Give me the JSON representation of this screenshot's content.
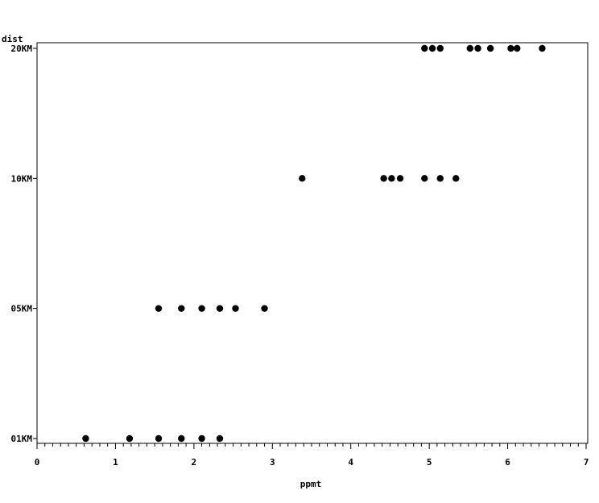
{
  "chart_data": {
    "type": "scatter",
    "title": "",
    "xlabel": "ppmt",
    "ylabel": "dist",
    "xlim": [
      0,
      7
    ],
    "x_ticks": [
      "0",
      "1",
      "2",
      "3",
      "4",
      "5",
      "6",
      "7"
    ],
    "y_categories": [
      "01KM",
      "05KM",
      "10KM",
      "20KM"
    ],
    "grid": false,
    "marker_color": "#000000",
    "series": [
      {
        "points": [
          {
            "x": 0.62,
            "y": "01KM"
          },
          {
            "x": 1.18,
            "y": "01KM"
          },
          {
            "x": 1.55,
            "y": "01KM"
          },
          {
            "x": 1.84,
            "y": "01KM"
          },
          {
            "x": 2.1,
            "y": "01KM"
          },
          {
            "x": 2.33,
            "y": "01KM"
          },
          {
            "x": 1.55,
            "y": "05KM"
          },
          {
            "x": 1.84,
            "y": "05KM"
          },
          {
            "x": 2.1,
            "y": "05KM"
          },
          {
            "x": 2.33,
            "y": "05KM"
          },
          {
            "x": 2.53,
            "y": "05KM"
          },
          {
            "x": 2.9,
            "y": "05KM"
          },
          {
            "x": 3.38,
            "y": "10KM"
          },
          {
            "x": 4.42,
            "y": "10KM"
          },
          {
            "x": 4.52,
            "y": "10KM"
          },
          {
            "x": 4.63,
            "y": "10KM"
          },
          {
            "x": 4.94,
            "y": "10KM"
          },
          {
            "x": 5.14,
            "y": "10KM"
          },
          {
            "x": 5.34,
            "y": "10KM"
          },
          {
            "x": 4.94,
            "y": "20KM"
          },
          {
            "x": 5.04,
            "y": "20KM"
          },
          {
            "x": 5.14,
            "y": "20KM"
          },
          {
            "x": 5.52,
            "y": "20KM"
          },
          {
            "x": 5.62,
            "y": "20KM"
          },
          {
            "x": 5.78,
            "y": "20KM"
          },
          {
            "x": 6.04,
            "y": "20KM"
          },
          {
            "x": 6.12,
            "y": "20KM"
          },
          {
            "x": 6.44,
            "y": "20KM"
          }
        ]
      }
    ]
  }
}
